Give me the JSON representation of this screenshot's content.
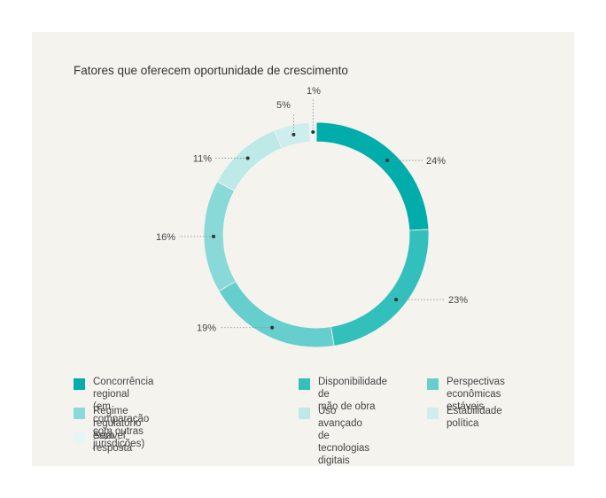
{
  "chart_data": {
    "type": "pie",
    "title": "Fatores que oferecem oportunidade de crescimento",
    "donut": true,
    "categories": [
      "Concorrência regional\n(em comparação com outras jurisdições)",
      "Disponibilidade de\nmão de obra",
      "Perspectivas\neconômicas estáveis",
      "Regime regulatório estável",
      "Uso avançado de\ntecnologias digitais",
      "Estabilidade política",
      "Sem resposta"
    ],
    "values": [
      24,
      23,
      19,
      16,
      11,
      5,
      1
    ],
    "labels": [
      "24%",
      "23%",
      "19%",
      "16%",
      "11%",
      "5%",
      "1%"
    ],
    "colors": [
      "#00adaa",
      "#33c0bc",
      "#66cfce",
      "#88d9d8",
      "#bde9e7",
      "#cdeeed",
      "#e7f6f5"
    ],
    "legend_position": "bottom"
  }
}
